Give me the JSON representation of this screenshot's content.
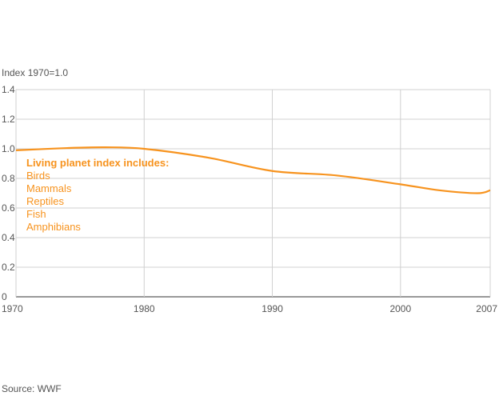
{
  "chart_data": {
    "type": "line",
    "ylabel": "Index 1970=1.0",
    "source": "Source: WWF",
    "x_ticks": [
      1970,
      1980,
      1990,
      2000,
      2007
    ],
    "y_ticks": [
      "0",
      "0.2",
      "0.4",
      "0.6",
      "0.8",
      "1.0",
      "1.2",
      "1.4"
    ],
    "xlim": [
      1970,
      2007
    ],
    "ylim": [
      0,
      1.4
    ],
    "grid": true,
    "line_color": "#f7931e",
    "series": [
      {
        "x": [
          1970,
          1974,
          1977,
          1980,
          1985,
          1990,
          1995,
          2000,
          2003,
          2006,
          2007
        ],
        "values": [
          0.99,
          1.005,
          1.01,
          1.0,
          0.94,
          0.85,
          0.82,
          0.76,
          0.72,
          0.7,
          0.72
        ]
      }
    ],
    "annotation": {
      "title": "Living planet index includes:",
      "items": [
        "Birds",
        "Mammals",
        "Reptiles",
        "Fish",
        "Amphibians"
      ]
    }
  }
}
